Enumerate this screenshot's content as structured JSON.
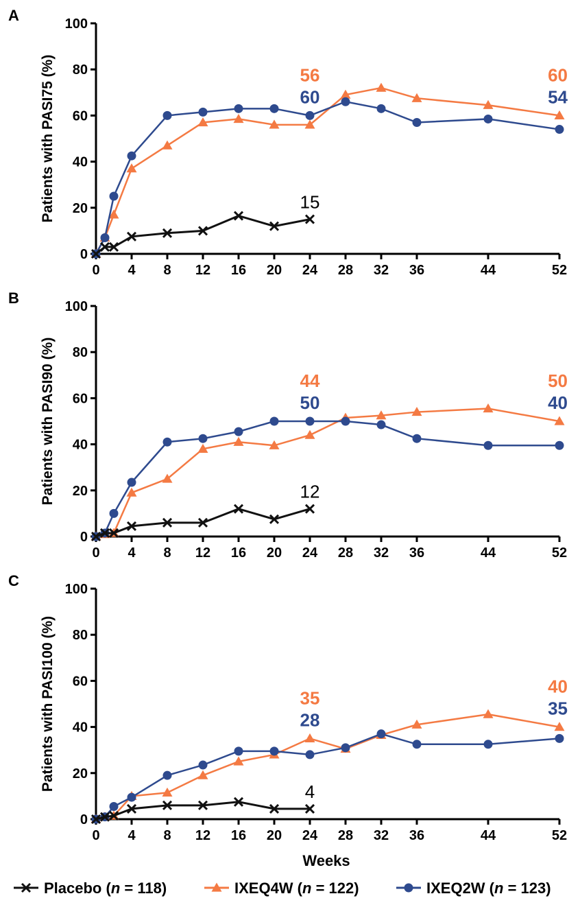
{
  "xlabel": "Weeks",
  "colors": {
    "placebo": "#111111",
    "ixeq4w": "#f47a43",
    "ixeq2w": "#2e4a8e"
  },
  "legend": [
    {
      "key": "placebo",
      "marker": "cross",
      "name": "Placebo",
      "n_text": "n = 118"
    },
    {
      "key": "ixeq4w",
      "marker": "triangle",
      "name": "IXEQ4W",
      "n_text": "n = 122"
    },
    {
      "key": "ixeq2w",
      "marker": "circle",
      "name": "IXEQ2W",
      "n_text": "n = 123"
    }
  ],
  "chart_data": [
    {
      "type": "line",
      "panel": "A",
      "ylabel": "Patients with PASI75 (%)",
      "xlim": [
        0,
        52
      ],
      "ylim": [
        0,
        100
      ],
      "xticks": [
        0,
        4,
        8,
        12,
        16,
        20,
        24,
        28,
        32,
        36,
        44,
        52
      ],
      "yticks": [
        0,
        20,
        40,
        60,
        80,
        100
      ],
      "series": [
        {
          "key": "placebo",
          "name": "Placebo",
          "marker": "cross",
          "x": [
            0,
            1,
            2,
            4,
            8,
            12,
            16,
            20,
            24
          ],
          "y": [
            0,
            3,
            3,
            7.5,
            9,
            10,
            16.5,
            12,
            15
          ]
        },
        {
          "key": "ixeq4w",
          "name": "IXEQ4W",
          "marker": "triangle",
          "x": [
            0,
            1,
            2,
            4,
            8,
            12,
            16,
            20,
            24,
            28,
            32,
            36,
            44,
            52
          ],
          "y": [
            0,
            7,
            17,
            37,
            47,
            57,
            58.5,
            56,
            56,
            69,
            72,
            67.5,
            64.5,
            60
          ]
        },
        {
          "key": "ixeq2w",
          "name": "IXEQ2W",
          "marker": "circle",
          "x": [
            0,
            1,
            2,
            4,
            8,
            12,
            16,
            20,
            24,
            28,
            32,
            36,
            44,
            52
          ],
          "y": [
            0,
            7,
            25,
            42.5,
            60,
            61.5,
            63,
            63,
            60,
            66,
            63,
            57,
            58.5,
            54
          ]
        }
      ],
      "annotations": [
        {
          "series": "ixeq4w",
          "text": "56",
          "x": 24,
          "slot": 0
        },
        {
          "series": "ixeq2w",
          "text": "60",
          "x": 24,
          "slot": 1
        },
        {
          "series": "ixeq4w",
          "text": "60",
          "x": 52,
          "slot": 0
        },
        {
          "series": "ixeq2w",
          "text": "54",
          "x": 52,
          "slot": 1
        },
        {
          "series": "placebo",
          "text": "15",
          "x": 24,
          "slot": 2
        }
      ]
    },
    {
      "type": "line",
      "panel": "B",
      "ylabel": "Patients with PASI90 (%)",
      "xlim": [
        0,
        52
      ],
      "ylim": [
        0,
        100
      ],
      "xticks": [
        0,
        4,
        8,
        12,
        16,
        20,
        24,
        28,
        32,
        36,
        44,
        52
      ],
      "yticks": [
        0,
        20,
        40,
        60,
        80,
        100
      ],
      "series": [
        {
          "key": "placebo",
          "name": "Placebo",
          "marker": "cross",
          "x": [
            0,
            1,
            2,
            4,
            8,
            12,
            16,
            20,
            24
          ],
          "y": [
            0,
            1.5,
            1.5,
            4.5,
            6,
            6,
            12,
            7.5,
            12
          ]
        },
        {
          "key": "ixeq4w",
          "name": "IXEQ4W",
          "marker": "triangle",
          "x": [
            0,
            1,
            2,
            4,
            8,
            12,
            16,
            20,
            24,
            28,
            32,
            36,
            44,
            52
          ],
          "y": [
            0,
            1,
            1.5,
            19,
            25,
            38,
            41,
            39.5,
            44,
            51.5,
            52.5,
            54,
            55.5,
            50
          ]
        },
        {
          "key": "ixeq2w",
          "name": "IXEQ2W",
          "marker": "circle",
          "x": [
            0,
            1,
            2,
            4,
            8,
            12,
            16,
            20,
            24,
            28,
            32,
            36,
            44,
            52
          ],
          "y": [
            0,
            1.5,
            10,
            23.5,
            41,
            42.5,
            45.5,
            50,
            50,
            50,
            48.5,
            42.5,
            39.5,
            39.5
          ]
        }
      ],
      "annotations": [
        {
          "series": "ixeq4w",
          "text": "44",
          "x": 24,
          "slot": 0
        },
        {
          "series": "ixeq2w",
          "text": "50",
          "x": 24,
          "slot": 1
        },
        {
          "series": "ixeq4w",
          "text": "50",
          "x": 52,
          "slot": 0
        },
        {
          "series": "ixeq2w",
          "text": "40",
          "x": 52,
          "slot": 1
        },
        {
          "series": "placebo",
          "text": "12",
          "x": 24,
          "slot": 2
        }
      ]
    },
    {
      "type": "line",
      "panel": "C",
      "ylabel": "Patients with PASI100 (%)",
      "xlabel": "Weeks",
      "xlim": [
        0,
        52
      ],
      "ylim": [
        0,
        100
      ],
      "xticks": [
        0,
        4,
        8,
        12,
        16,
        20,
        24,
        28,
        32,
        36,
        44,
        52
      ],
      "yticks": [
        0,
        20,
        40,
        60,
        80,
        100
      ],
      "series": [
        {
          "key": "placebo",
          "name": "Placebo",
          "marker": "cross",
          "x": [
            0,
            1,
            2,
            4,
            8,
            12,
            16,
            20,
            24
          ],
          "y": [
            0,
            1,
            1.5,
            4.5,
            6,
            6,
            7.5,
            4.5,
            4.5
          ]
        },
        {
          "key": "ixeq4w",
          "name": "IXEQ4W",
          "marker": "triangle",
          "x": [
            0,
            1,
            2,
            4,
            8,
            12,
            16,
            20,
            24,
            28,
            32,
            36,
            44,
            52
          ],
          "y": [
            0,
            1,
            1.5,
            10,
            11.5,
            19,
            25,
            28,
            35,
            30.5,
            36.5,
            41,
            45.5,
            40
          ]
        },
        {
          "key": "ixeq2w",
          "name": "IXEQ2W",
          "marker": "circle",
          "x": [
            0,
            1,
            2,
            4,
            8,
            12,
            16,
            20,
            24,
            28,
            32,
            36,
            44,
            52
          ],
          "y": [
            0,
            1,
            5.5,
            9.5,
            19,
            23.5,
            29.5,
            29.5,
            28,
            31,
            37,
            32.5,
            32.5,
            35
          ]
        }
      ],
      "annotations": [
        {
          "series": "ixeq4w",
          "text": "35",
          "x": 24,
          "slot": 0
        },
        {
          "series": "ixeq2w",
          "text": "28",
          "x": 24,
          "slot": 1
        },
        {
          "series": "ixeq4w",
          "text": "40",
          "x": 52,
          "slot": 0
        },
        {
          "series": "ixeq2w",
          "text": "35",
          "x": 52,
          "slot": 1
        },
        {
          "series": "placebo",
          "text": "4",
          "x": 24,
          "slot": 2
        }
      ]
    }
  ]
}
